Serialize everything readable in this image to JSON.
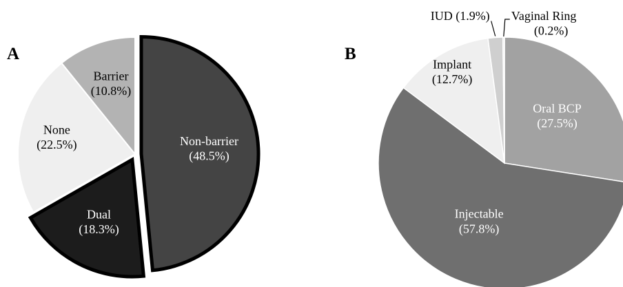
{
  "chart_data": [
    {
      "type": "pie",
      "panel": "A",
      "slices": [
        {
          "label": "Non-barrier",
          "value_text": "(48.5%)",
          "value": 48.5,
          "color": "#444444",
          "text_color": "#ffffff",
          "exploded": true,
          "outlined": true
        },
        {
          "label": "Dual",
          "value_text": "(18.3%)",
          "value": 18.3,
          "color": "#1c1c1c",
          "text_color": "#ffffff",
          "exploded": true,
          "outlined": true
        },
        {
          "label": "None",
          "value_text": "(22.5%)",
          "value": 22.5,
          "color": "#efefef",
          "text_color": "#000000",
          "exploded": false,
          "outlined": false
        },
        {
          "label": "Barrier",
          "value_text": "(10.8%)",
          "value": 10.8,
          "color": "#b3b3b3",
          "text_color": "#000000",
          "exploded": false,
          "outlined": false
        }
      ]
    },
    {
      "type": "pie",
      "panel": "B",
      "slices": [
        {
          "label": "Oral BCP",
          "value_text": "(27.5%)",
          "value": 27.5,
          "color": "#a2a2a2",
          "text_color": "#ffffff"
        },
        {
          "label": "Injectable",
          "value_text": "(57.8%)",
          "value": 57.8,
          "color": "#6f6f6f",
          "text_color": "#ffffff"
        },
        {
          "label": "Implant",
          "value_text": "(12.7%)",
          "value": 12.7,
          "color": "#efefef",
          "text_color": "#000000"
        },
        {
          "label": "IUD",
          "value_text": "(1.9%)",
          "value": 1.9,
          "color": "#cfcfcf",
          "text_color": "#000000"
        },
        {
          "label": "Vaginal Ring",
          "value_text": "(0.2%)",
          "value": 0.2,
          "color": "#e8e8e8",
          "text_color": "#000000"
        }
      ]
    }
  ]
}
